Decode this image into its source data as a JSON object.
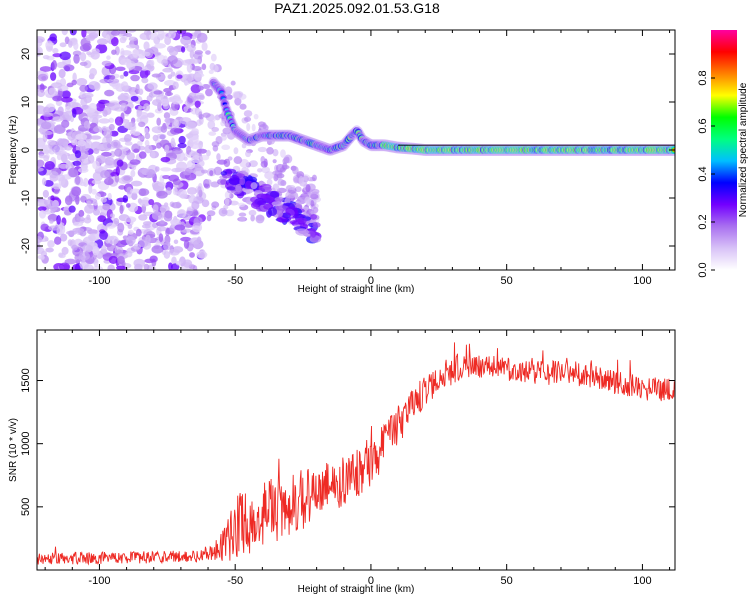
{
  "title": "PAZ1.2025.092.01.53.G18",
  "colors": {
    "snr_line": "#ee2a24",
    "spectral_cmap": [
      "#ffffff",
      "#d8c2f7",
      "#a970f0",
      "#7300ff",
      "#0000ff",
      "#00bfff",
      "#00ff80",
      "#00ff00",
      "#ffff00",
      "#ff8000",
      "#ff0000",
      "#ff00a0"
    ]
  },
  "chart_data": [
    {
      "type": "heatmap",
      "name": "spectrogram",
      "xlabel": "Height of straight line (km)",
      "ylabel": "Frequency (Hz)",
      "xlim": [
        -123,
        112
      ],
      "ylim": [
        -25,
        25
      ],
      "xticks": [
        -100,
        -50,
        0,
        50,
        100
      ],
      "yticks": [
        -20,
        -10,
        0,
        10,
        20
      ],
      "grid": false,
      "colorbar": {
        "label": "Normalized spectral amplitude",
        "range": [
          0,
          1
        ],
        "ticks": [
          "0.0",
          "0.2",
          "0.4",
          "0.6",
          "0.8"
        ]
      },
      "ridge": {
        "x": [
          -58,
          -55,
          -53,
          -50,
          -45,
          -40,
          -35,
          -30,
          -25,
          -20,
          -15,
          -10,
          -7,
          -5,
          -3,
          0,
          5,
          10,
          15,
          20,
          30,
          50,
          70,
          90,
          112
        ],
        "y": [
          14,
          12,
          8,
          4,
          2,
          3,
          3,
          3,
          2,
          1,
          0,
          1,
          3,
          4,
          2,
          1,
          1,
          0.5,
          0.3,
          0,
          0,
          0,
          0,
          0,
          0
        ]
      }
    },
    {
      "type": "line",
      "name": "snr",
      "xlabel": "Height of straight line (km)",
      "ylabel": "SNR (10 * v/v)",
      "xlim": [
        -123,
        112
      ],
      "ylim": [
        0,
        1900
      ],
      "xticks": [
        -100,
        -50,
        0,
        50,
        100
      ],
      "yticks": [
        500,
        1000,
        1500
      ],
      "grid": false,
      "envelope": {
        "x": [
          -123,
          -100,
          -80,
          -65,
          -58,
          -55,
          -52,
          -50,
          -48,
          -45,
          -40,
          -35,
          -30,
          -25,
          -20,
          -15,
          -10,
          -5,
          0,
          5,
          10,
          15,
          20,
          25,
          30,
          40,
          50,
          60,
          70,
          80,
          90,
          100,
          112
        ],
        "mean": [
          90,
          95,
          100,
          110,
          140,
          190,
          250,
          320,
          360,
          380,
          430,
          480,
          520,
          560,
          600,
          640,
          700,
          760,
          820,
          1000,
          1150,
          1300,
          1420,
          1520,
          1580,
          1620,
          1580,
          1560,
          1560,
          1540,
          1480,
          1440,
          1420
        ],
        "spread": [
          60,
          60,
          60,
          60,
          80,
          150,
          250,
          300,
          330,
          330,
          330,
          320,
          320,
          300,
          280,
          270,
          260,
          240,
          220,
          220,
          200,
          180,
          160,
          150,
          140,
          130,
          130,
          120,
          120,
          120,
          120,
          120,
          120
        ]
      }
    }
  ]
}
